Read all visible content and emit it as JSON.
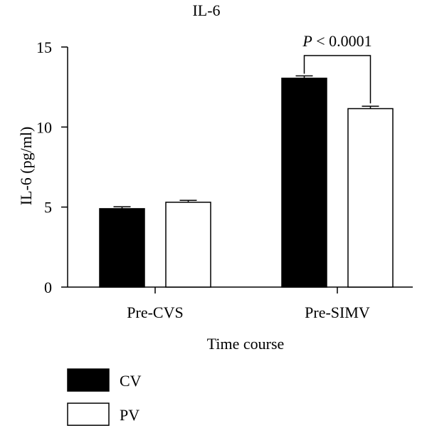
{
  "chart_data": {
    "type": "bar",
    "title": "IL-6",
    "xlabel": "Time course",
    "ylabel": "IL-6 (pg/ml)",
    "ylim": [
      0,
      15
    ],
    "yticks": [
      0,
      5,
      10,
      15
    ],
    "categories": [
      "Pre-CVS",
      "Pre-SIMV"
    ],
    "series": [
      {
        "name": "CV",
        "values": [
          4.9,
          13.05
        ],
        "errors": [
          0.12,
          0.15
        ],
        "color": "#000000"
      },
      {
        "name": "PV",
        "values": [
          5.3,
          11.15
        ],
        "errors": [
          0.12,
          0.15
        ],
        "color": "#ffffff"
      }
    ],
    "annotation": {
      "italic": "P",
      "text": " < 0.0001",
      "between": [
        "CV",
        "PV"
      ],
      "category": "Pre-SIMV"
    },
    "legend_position": "bottom-left"
  }
}
